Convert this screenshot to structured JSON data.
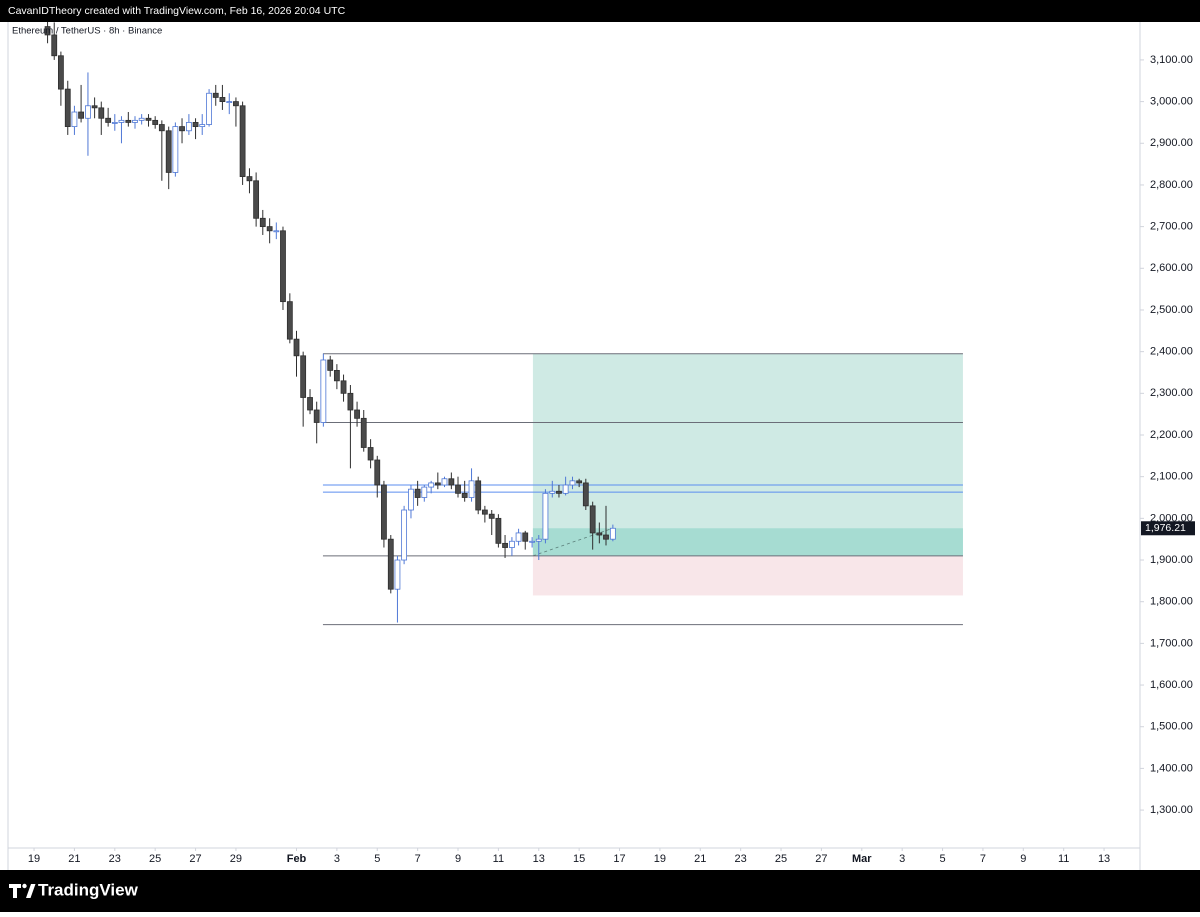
{
  "header": {
    "text": "CavanIDTheory created with TradingView.com, Feb 16, 2026 20:04 UTC"
  },
  "footer": {
    "brand": "TradingView"
  },
  "chart_data": {
    "type": "candlestick",
    "title": "Ethereum / TetherUS · 8h · Binance",
    "x": [
      19.67,
      20,
      20.33,
      20.67,
      21,
      21.33,
      21.67,
      22,
      22.33,
      22.67,
      23,
      23.33,
      23.67,
      24,
      24.33,
      24.67,
      25,
      25.33,
      25.67,
      26,
      26.33,
      26.67,
      27,
      27.33,
      27.67,
      28,
      28.33,
      28.67,
      29,
      29.33,
      29.67,
      30,
      30.33,
      30.67,
      31,
      31.33,
      31.67,
      32,
      32.33,
      32.67,
      33,
      33.33,
      33.67,
      34,
      34.33,
      34.67,
      35,
      35.33,
      35.67,
      36,
      36.33,
      36.67,
      37,
      37.33,
      37.67,
      38,
      38.33,
      38.67,
      39,
      39.33,
      39.67,
      40,
      40.33,
      40.67,
      41,
      41.33,
      41.67,
      42,
      42.33,
      42.67,
      43,
      43.33,
      43.67,
      44,
      44.33,
      44.67,
      45,
      45.33,
      45.67,
      46,
      46.33,
      46.67,
      47,
      47.33,
      47.67
    ],
    "open": [
      3180,
      3160,
      3110,
      3030,
      2940,
      2975,
      2960,
      2990,
      2985,
      2960,
      2950,
      2950,
      2955,
      2950,
      2955,
      2960,
      2955,
      2945,
      2930,
      2830,
      2940,
      2930,
      2950,
      2940,
      2945,
      3020,
      3010,
      3000,
      3000,
      2990,
      2820,
      2810,
      2720,
      2700,
      2690,
      2690,
      2520,
      2430,
      2390,
      2290,
      2260,
      2230,
      2380,
      2355,
      2330,
      2300,
      2260,
      2240,
      2170,
      2140,
      2080,
      1950,
      1830,
      1900,
      2020,
      2070,
      2050,
      2075,
      2085,
      2080,
      2095,
      2080,
      2060,
      2050,
      2090,
      2020,
      2010,
      2000,
      1940,
      1930,
      1945,
      1965,
      1945,
      1945,
      1950,
      2060,
      2065,
      2060,
      2080,
      2090,
      2085,
      2030,
      1965,
      1960,
      1950
    ],
    "high": [
      3210,
      3190,
      3120,
      3050,
      2990,
      3040,
      3070,
      3010,
      3000,
      2985,
      2970,
      2965,
      2975,
      2965,
      2970,
      2970,
      2965,
      2955,
      2940,
      2950,
      2960,
      2970,
      2960,
      2970,
      3030,
      3040,
      3040,
      3020,
      3010,
      3000,
      2840,
      2830,
      2740,
      2720,
      2710,
      2700,
      2540,
      2450,
      2400,
      2310,
      2280,
      2395,
      2390,
      2370,
      2345,
      2320,
      2280,
      2260,
      2190,
      2150,
      2090,
      1960,
      1910,
      2030,
      2080,
      2090,
      2080,
      2090,
      2110,
      2100,
      2110,
      2100,
      2090,
      2120,
      2100,
      2030,
      2020,
      2010,
      1960,
      1955,
      1975,
      1970,
      1955,
      1960,
      2070,
      2090,
      2080,
      2100,
      2100,
      2095,
      2095,
      2040,
      1990,
      2030,
      1985
    ],
    "low": [
      3140,
      3100,
      2990,
      2920,
      2920,
      2950,
      2870,
      2960,
      2920,
      2940,
      2930,
      2900,
      2940,
      2935,
      2945,
      2940,
      2935,
      2810,
      2790,
      2820,
      2900,
      2920,
      2910,
      2920,
      2940,
      2990,
      2980,
      2970,
      2940,
      2800,
      2780,
      2700,
      2680,
      2660,
      2670,
      2500,
      2420,
      2340,
      2220,
      2250,
      2180,
      2220,
      2340,
      2310,
      2280,
      2120,
      2220,
      2160,
      2120,
      2050,
      1930,
      1820,
      1750,
      1890,
      2000,
      2030,
      2040,
      2060,
      2070,
      2075,
      2070,
      2050,
      2040,
      2040,
      2010,
      1990,
      1960,
      1930,
      1905,
      1910,
      1935,
      1925,
      1930,
      1900,
      1940,
      2050,
      2050,
      2055,
      2070,
      2075,
      2020,
      1925,
      1940,
      1935,
      1945
    ],
    "close": [
      3160,
      3110,
      3030,
      2940,
      2975,
      2960,
      2990,
      2985,
      2960,
      2950,
      2950,
      2955,
      2950,
      2955,
      2960,
      2955,
      2945,
      2930,
      2830,
      2940,
      2930,
      2950,
      2940,
      2945,
      3020,
      3010,
      3000,
      3000,
      2990,
      2820,
      2810,
      2720,
      2700,
      2690,
      2690,
      2520,
      2430,
      2390,
      2290,
      2260,
      2230,
      2380,
      2355,
      2330,
      2300,
      2260,
      2240,
      2170,
      2140,
      2080,
      1950,
      1830,
      1900,
      2020,
      2070,
      2050,
      2075,
      2085,
      2080,
      2095,
      2080,
      2060,
      2050,
      2090,
      2020,
      2010,
      2000,
      1940,
      1930,
      1945,
      1965,
      1945,
      1945,
      1950,
      2060,
      2065,
      2060,
      2080,
      2090,
      2085,
      2030,
      1965,
      1960,
      1950,
      1976.21
    ],
    "up_color": "#ffffff",
    "up_border": "#4f78d6",
    "down_color": "#4a4a4a",
    "down_border": "#2e2e2e",
    "xlim": [
      17.71,
      73.78
    ],
    "xticks": [
      19,
      21,
      23,
      25,
      27,
      29,
      {
        "value": 32,
        "label": "Feb"
      },
      {
        "value": 34,
        "label": "3"
      },
      {
        "value": 36,
        "label": "5"
      },
      {
        "value": 38,
        "label": "7"
      },
      {
        "value": 40,
        "label": "9"
      },
      {
        "value": 42,
        "label": "11"
      },
      {
        "value": 44,
        "label": "13"
      },
      {
        "value": 46,
        "label": "15"
      },
      {
        "value": 48,
        "label": "17"
      },
      {
        "value": 50,
        "label": "19"
      },
      {
        "value": 52,
        "label": "21"
      },
      {
        "value": 54,
        "label": "23"
      },
      {
        "value": 56,
        "label": "25"
      },
      {
        "value": 58,
        "label": "27"
      },
      {
        "value": 60,
        "label": "Mar"
      },
      {
        "value": 62,
        "label": "3"
      },
      {
        "value": 64,
        "label": "5"
      },
      {
        "value": 66,
        "label": "7"
      },
      {
        "value": 68,
        "label": "9"
      },
      {
        "value": 70,
        "label": "11"
      },
      {
        "value": 72,
        "label": "13"
      }
    ],
    "ylim": [
      1209,
      3191
    ],
    "yticks": [
      {
        "value": 1300,
        "label": "1,300.00"
      },
      {
        "value": 1400,
        "label": "1,400.00"
      },
      {
        "value": 1500,
        "label": "1,500.00"
      },
      {
        "value": 1600,
        "label": "1,600.00"
      },
      {
        "value": 1700,
        "label": "1,700.00"
      },
      {
        "value": 1800,
        "label": "1,800.00"
      },
      {
        "value": 1900,
        "label": "1,900.00"
      },
      {
        "value": 2000,
        "label": "2,000.00"
      },
      {
        "value": 2100,
        "label": "2,100.00"
      },
      {
        "value": 2200,
        "label": "2,200.00"
      },
      {
        "value": 2300,
        "label": "2,300.00"
      },
      {
        "value": 2400,
        "label": "2,400.00"
      },
      {
        "value": 2500,
        "label": "2,500.00"
      },
      {
        "value": 2600,
        "label": "2,600.00"
      },
      {
        "value": 2700,
        "label": "2,700.00"
      },
      {
        "value": 2800,
        "label": "2,800.00"
      },
      {
        "value": 2900,
        "label": "2,900.00"
      },
      {
        "value": 3000,
        "label": "3,000.00"
      },
      {
        "value": 3100,
        "label": "3,100.00"
      }
    ],
    "last_price": {
      "value": 1976.21,
      "label": "1,976.21"
    },
    "levels_x": [
      33.31,
      65.01
    ],
    "levels": [
      {
        "value": 2395,
        "color": "#6b6e78"
      },
      {
        "value": 2230,
        "color": "#6b6e78"
      },
      {
        "value": 2080,
        "color": "#5b8def"
      },
      {
        "value": 2063,
        "color": "#5b8def"
      },
      {
        "value": 1910,
        "color": "#6b6e78"
      },
      {
        "value": 1745,
        "color": "#6b6e78"
      }
    ],
    "position": {
      "x": [
        43.71,
        65.01
      ],
      "entry": 1910,
      "target": 2395,
      "stop": 1815,
      "profit_color": "#cfeae4",
      "open_color": "#a6dcd2",
      "loss_color": "#f8e6e9"
    }
  }
}
